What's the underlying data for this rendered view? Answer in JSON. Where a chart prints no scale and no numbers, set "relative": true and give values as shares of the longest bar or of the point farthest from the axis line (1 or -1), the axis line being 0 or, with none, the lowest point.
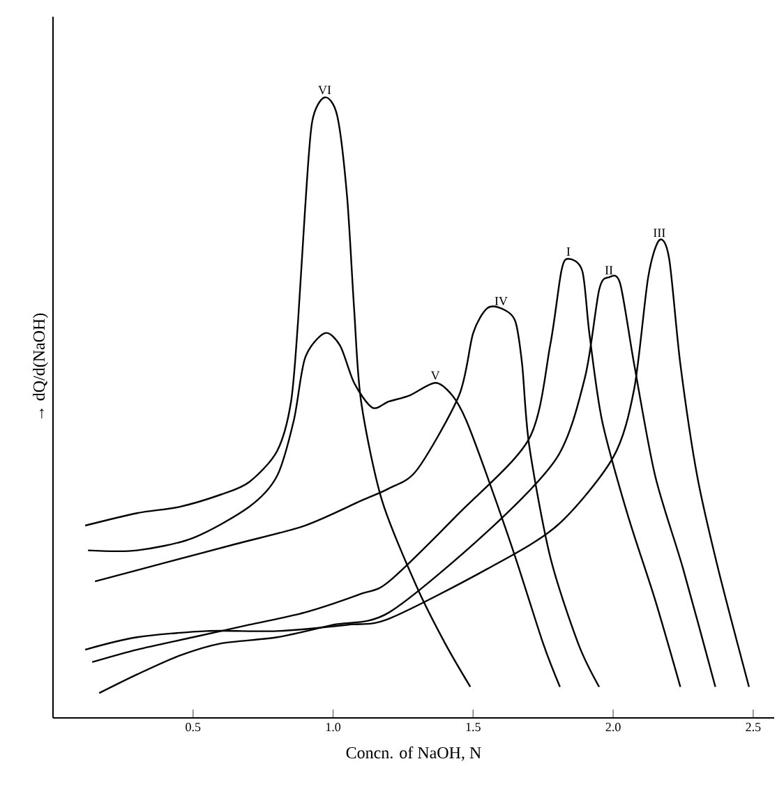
{
  "chart_data": {
    "type": "line",
    "relative": true,
    "xlabel": "Concn. of NaOH, N",
    "ylabel": "→ dQ/d(NaOH)",
    "xlim": [
      0,
      2.575
    ],
    "xticks": [
      0.5,
      {
        "value": 1.0,
        "label": "1.0"
      },
      1.5,
      {
        "value": 2.0,
        "label": "2.0"
      },
      2.5
    ],
    "grid": false,
    "legend": false,
    "marker": "none",
    "line_style": "solid",
    "series": [
      {
        "name": "VI",
        "color": "#000000",
        "x": [
          0.115,
          0.3,
          0.45,
          0.6,
          0.7,
          0.8,
          0.85,
          0.875,
          0.9,
          0.925,
          0.97,
          1.015,
          1.05,
          1.075,
          1.1,
          1.175,
          1.3,
          1.4,
          1.49
        ],
        "values": [
          0.31,
          0.33,
          0.34,
          0.36,
          0.38,
          0.43,
          0.51,
          0.64,
          0.82,
          0.96,
          1.0,
          0.97,
          0.84,
          0.66,
          0.51,
          0.35,
          0.21,
          0.12,
          0.05
        ]
      },
      {
        "name": "V",
        "color": "#000000",
        "x": [
          0.125,
          0.3,
          0.5,
          0.7,
          0.8,
          0.86,
          0.9,
          0.97,
          1.025,
          1.075,
          1.14,
          1.2,
          1.275,
          1.365,
          1.425,
          1.475,
          1.55,
          1.65,
          1.75,
          1.81
        ],
        "values": [
          0.27,
          0.27,
          0.29,
          0.34,
          0.39,
          0.48,
          0.58,
          0.62,
          0.6,
          0.54,
          0.5,
          0.51,
          0.52,
          0.54,
          0.52,
          0.48,
          0.39,
          0.26,
          0.12,
          0.05
        ]
      },
      {
        "name": "IV",
        "color": "#000000",
        "x": [
          0.15,
          0.4,
          0.65,
          0.9,
          1.1,
          1.2,
          1.3,
          1.45,
          1.5,
          1.55,
          1.6,
          1.65,
          1.675,
          1.7,
          1.775,
          1.875,
          1.95
        ],
        "values": [
          0.22,
          0.25,
          0.28,
          0.31,
          0.35,
          0.37,
          0.4,
          0.52,
          0.62,
          0.66,
          0.66,
          0.64,
          0.57,
          0.44,
          0.26,
          0.12,
          0.05
        ]
      },
      {
        "name": "I",
        "color": "#000000",
        "x": [
          0.14,
          0.3,
          0.5,
          0.7,
          0.9,
          1.1,
          1.2,
          1.45,
          1.7,
          1.775,
          1.815,
          1.84,
          1.89,
          1.915,
          1.96,
          2.05,
          2.15,
          2.24
        ],
        "values": [
          0.09,
          0.11,
          0.13,
          0.15,
          0.17,
          0.2,
          0.22,
          0.33,
          0.45,
          0.6,
          0.72,
          0.74,
          0.72,
          0.62,
          0.48,
          0.33,
          0.19,
          0.05
        ]
      },
      {
        "name": "II",
        "color": "#000000",
        "x": [
          0.165,
          0.3,
          0.45,
          0.6,
          0.8,
          1.0,
          1.2,
          1.55,
          1.8,
          1.9,
          1.95,
          1.985,
          2.025,
          2.075,
          2.15,
          2.25,
          2.365
        ],
        "values": [
          0.04,
          0.07,
          0.1,
          0.12,
          0.13,
          0.15,
          0.17,
          0.3,
          0.42,
          0.55,
          0.69,
          0.71,
          0.7,
          0.57,
          0.39,
          0.24,
          0.05
        ]
      },
      {
        "name": "III",
        "color": "#000000",
        "x": [
          0.115,
          0.3,
          0.55,
          0.8,
          1.05,
          1.2,
          1.55,
          1.8,
          2.0,
          2.075,
          2.125,
          2.165,
          2.2,
          2.24,
          2.3,
          2.375,
          2.485
        ],
        "values": [
          0.11,
          0.13,
          0.14,
          0.14,
          0.15,
          0.16,
          0.24,
          0.31,
          0.42,
          0.53,
          0.71,
          0.77,
          0.74,
          0.57,
          0.39,
          0.24,
          0.05
        ]
      }
    ]
  }
}
